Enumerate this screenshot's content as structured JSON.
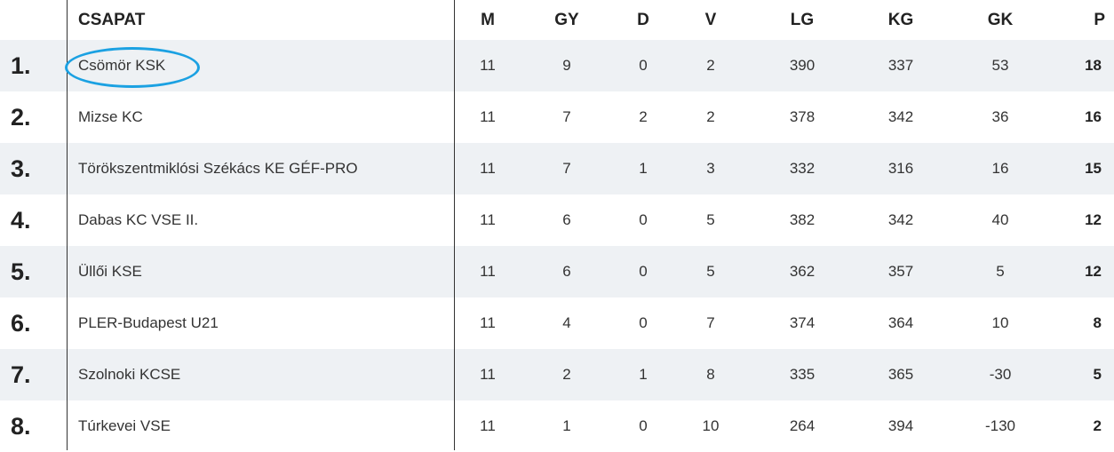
{
  "headers": {
    "team": "CSAPAT",
    "m": "M",
    "gy": "GY",
    "d": "D",
    "v": "V",
    "lg": "LG",
    "kg": "KG",
    "gk": "GK",
    "p": "P"
  },
  "highlight_color": "#1ba1e2",
  "rows": [
    {
      "rank": "1.",
      "team": "Csömör KSK",
      "m": "11",
      "gy": "9",
      "d": "0",
      "v": "2",
      "lg": "390",
      "kg": "337",
      "gk": "53",
      "p": "18"
    },
    {
      "rank": "2.",
      "team": "Mizse KC",
      "m": "11",
      "gy": "7",
      "d": "2",
      "v": "2",
      "lg": "378",
      "kg": "342",
      "gk": "36",
      "p": "16"
    },
    {
      "rank": "3.",
      "team": "Törökszentmiklósi Székács KE GÉF-PRO",
      "m": "11",
      "gy": "7",
      "d": "1",
      "v": "3",
      "lg": "332",
      "kg": "316",
      "gk": "16",
      "p": "15"
    },
    {
      "rank": "4.",
      "team": "Dabas KC VSE II.",
      "m": "11",
      "gy": "6",
      "d": "0",
      "v": "5",
      "lg": "382",
      "kg": "342",
      "gk": "40",
      "p": "12"
    },
    {
      "rank": "5.",
      "team": "Üllői KSE",
      "m": "11",
      "gy": "6",
      "d": "0",
      "v": "5",
      "lg": "362",
      "kg": "357",
      "gk": "5",
      "p": "12"
    },
    {
      "rank": "6.",
      "team": "PLER-Budapest U21",
      "m": "11",
      "gy": "4",
      "d": "0",
      "v": "7",
      "lg": "374",
      "kg": "364",
      "gk": "10",
      "p": "8"
    },
    {
      "rank": "7.",
      "team": "Szolnoki KCSE",
      "m": "11",
      "gy": "2",
      "d": "1",
      "v": "8",
      "lg": "335",
      "kg": "365",
      "gk": "-30",
      "p": "5"
    },
    {
      "rank": "8.",
      "team": "Túrkevei VSE",
      "m": "11",
      "gy": "1",
      "d": "0",
      "v": "10",
      "lg": "264",
      "kg": "394",
      "gk": "-130",
      "p": "2"
    }
  ]
}
